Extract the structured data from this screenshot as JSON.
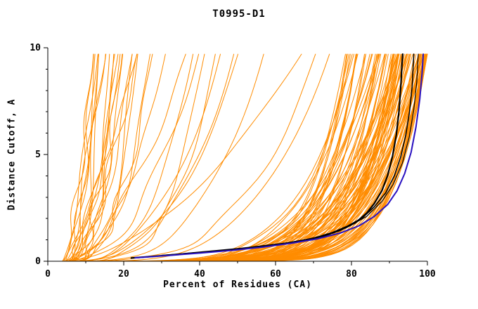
{
  "chart_data": {
    "type": "line",
    "title": "T0995-D1",
    "xlabel": "Percent of Residues (CA)",
    "ylabel": "Distance Cutoff, A",
    "xlim": [
      0,
      100
    ],
    "ylim": [
      0,
      10
    ],
    "x_ticks": [
      0,
      20,
      40,
      60,
      80,
      100
    ],
    "x_minor_tick_step": 10,
    "y_ticks": [
      0,
      5,
      10
    ],
    "y_minor_tick_step": 1,
    "grid": false,
    "background_color": "#ffffff",
    "axis_color": "#000000",
    "curve_top_y": 9.7,
    "ensemble": {
      "name": "predicted-model-curves-orange-ensemble-approximated",
      "color": "#ff8c00",
      "line_width": 1,
      "count": 135,
      "seed": 20181995,
      "start_x_range": [
        3.5,
        6.5
      ],
      "good_fraction": 0.72,
      "good_end_x_range": [
        78,
        100
      ],
      "good_end_x_bias": 1.8,
      "good_shape_exp_range": [
        5,
        11
      ],
      "poor_end_x_range": [
        12,
        76
      ],
      "poor_end_x_bias": 1.6,
      "poor_shape_exp_range": [
        1.15,
        4
      ]
    },
    "highlight_series": [
      {
        "name": "black-model-a",
        "color": "#000000",
        "line_width": 2.2,
        "points": [
          [
            22,
            0.15
          ],
          [
            27,
            0.22
          ],
          [
            33,
            0.3
          ],
          [
            39,
            0.4
          ],
          [
            45,
            0.5
          ],
          [
            51,
            0.6
          ],
          [
            57,
            0.72
          ],
          [
            63,
            0.85
          ],
          [
            68,
            1.0
          ],
          [
            73,
            1.2
          ],
          [
            77,
            1.45
          ],
          [
            81,
            1.8
          ],
          [
            84,
            2.25
          ],
          [
            86,
            2.7
          ],
          [
            88,
            3.3
          ],
          [
            89.5,
            4.0
          ],
          [
            90.8,
            4.9
          ],
          [
            91.8,
            5.9
          ],
          [
            92.5,
            7.0
          ],
          [
            93.0,
            8.2
          ],
          [
            93.3,
            9.2
          ],
          [
            93.5,
            9.7
          ]
        ]
      },
      {
        "name": "black-model-b",
        "color": "#000000",
        "line_width": 1.6,
        "points": [
          [
            24,
            0.17
          ],
          [
            31,
            0.27
          ],
          [
            38,
            0.37
          ],
          [
            45,
            0.48
          ],
          [
            52,
            0.6
          ],
          [
            58,
            0.73
          ],
          [
            64,
            0.88
          ],
          [
            70,
            1.08
          ],
          [
            75,
            1.35
          ],
          [
            79,
            1.65
          ],
          [
            83,
            2.05
          ],
          [
            86,
            2.55
          ],
          [
            89,
            3.2
          ],
          [
            91.3,
            4.0
          ],
          [
            93,
            4.9
          ],
          [
            94.3,
            5.9
          ],
          [
            95.3,
            7.0
          ],
          [
            96.0,
            8.2
          ],
          [
            96.4,
            9.7
          ]
        ]
      },
      {
        "name": "black-model-c",
        "color": "#000000",
        "line_width": 1.2,
        "points": [
          [
            30,
            0.28
          ],
          [
            40,
            0.42
          ],
          [
            50,
            0.57
          ],
          [
            59,
            0.73
          ],
          [
            67,
            0.95
          ],
          [
            74,
            1.25
          ],
          [
            79,
            1.6
          ],
          [
            84,
            2.1
          ],
          [
            88,
            2.8
          ],
          [
            91,
            3.6
          ],
          [
            93.4,
            4.6
          ],
          [
            95.2,
            5.8
          ],
          [
            96.4,
            7.1
          ],
          [
            97.2,
            8.4
          ],
          [
            97.6,
            9.7
          ]
        ]
      },
      {
        "name": "blue-model",
        "color": "#2a12c0",
        "line_width": 2,
        "points": [
          [
            23,
            0.16
          ],
          [
            31,
            0.26
          ],
          [
            40,
            0.38
          ],
          [
            49,
            0.52
          ],
          [
            57,
            0.67
          ],
          [
            64,
            0.84
          ],
          [
            71,
            1.05
          ],
          [
            77,
            1.32
          ],
          [
            82,
            1.66
          ],
          [
            86,
            2.1
          ],
          [
            89.5,
            2.65
          ],
          [
            92,
            3.3
          ],
          [
            94,
            4.1
          ],
          [
            95.7,
            5.1
          ],
          [
            97,
            6.3
          ],
          [
            98,
            7.6
          ],
          [
            98.6,
            8.8
          ],
          [
            98.9,
            9.7
          ]
        ]
      }
    ]
  }
}
